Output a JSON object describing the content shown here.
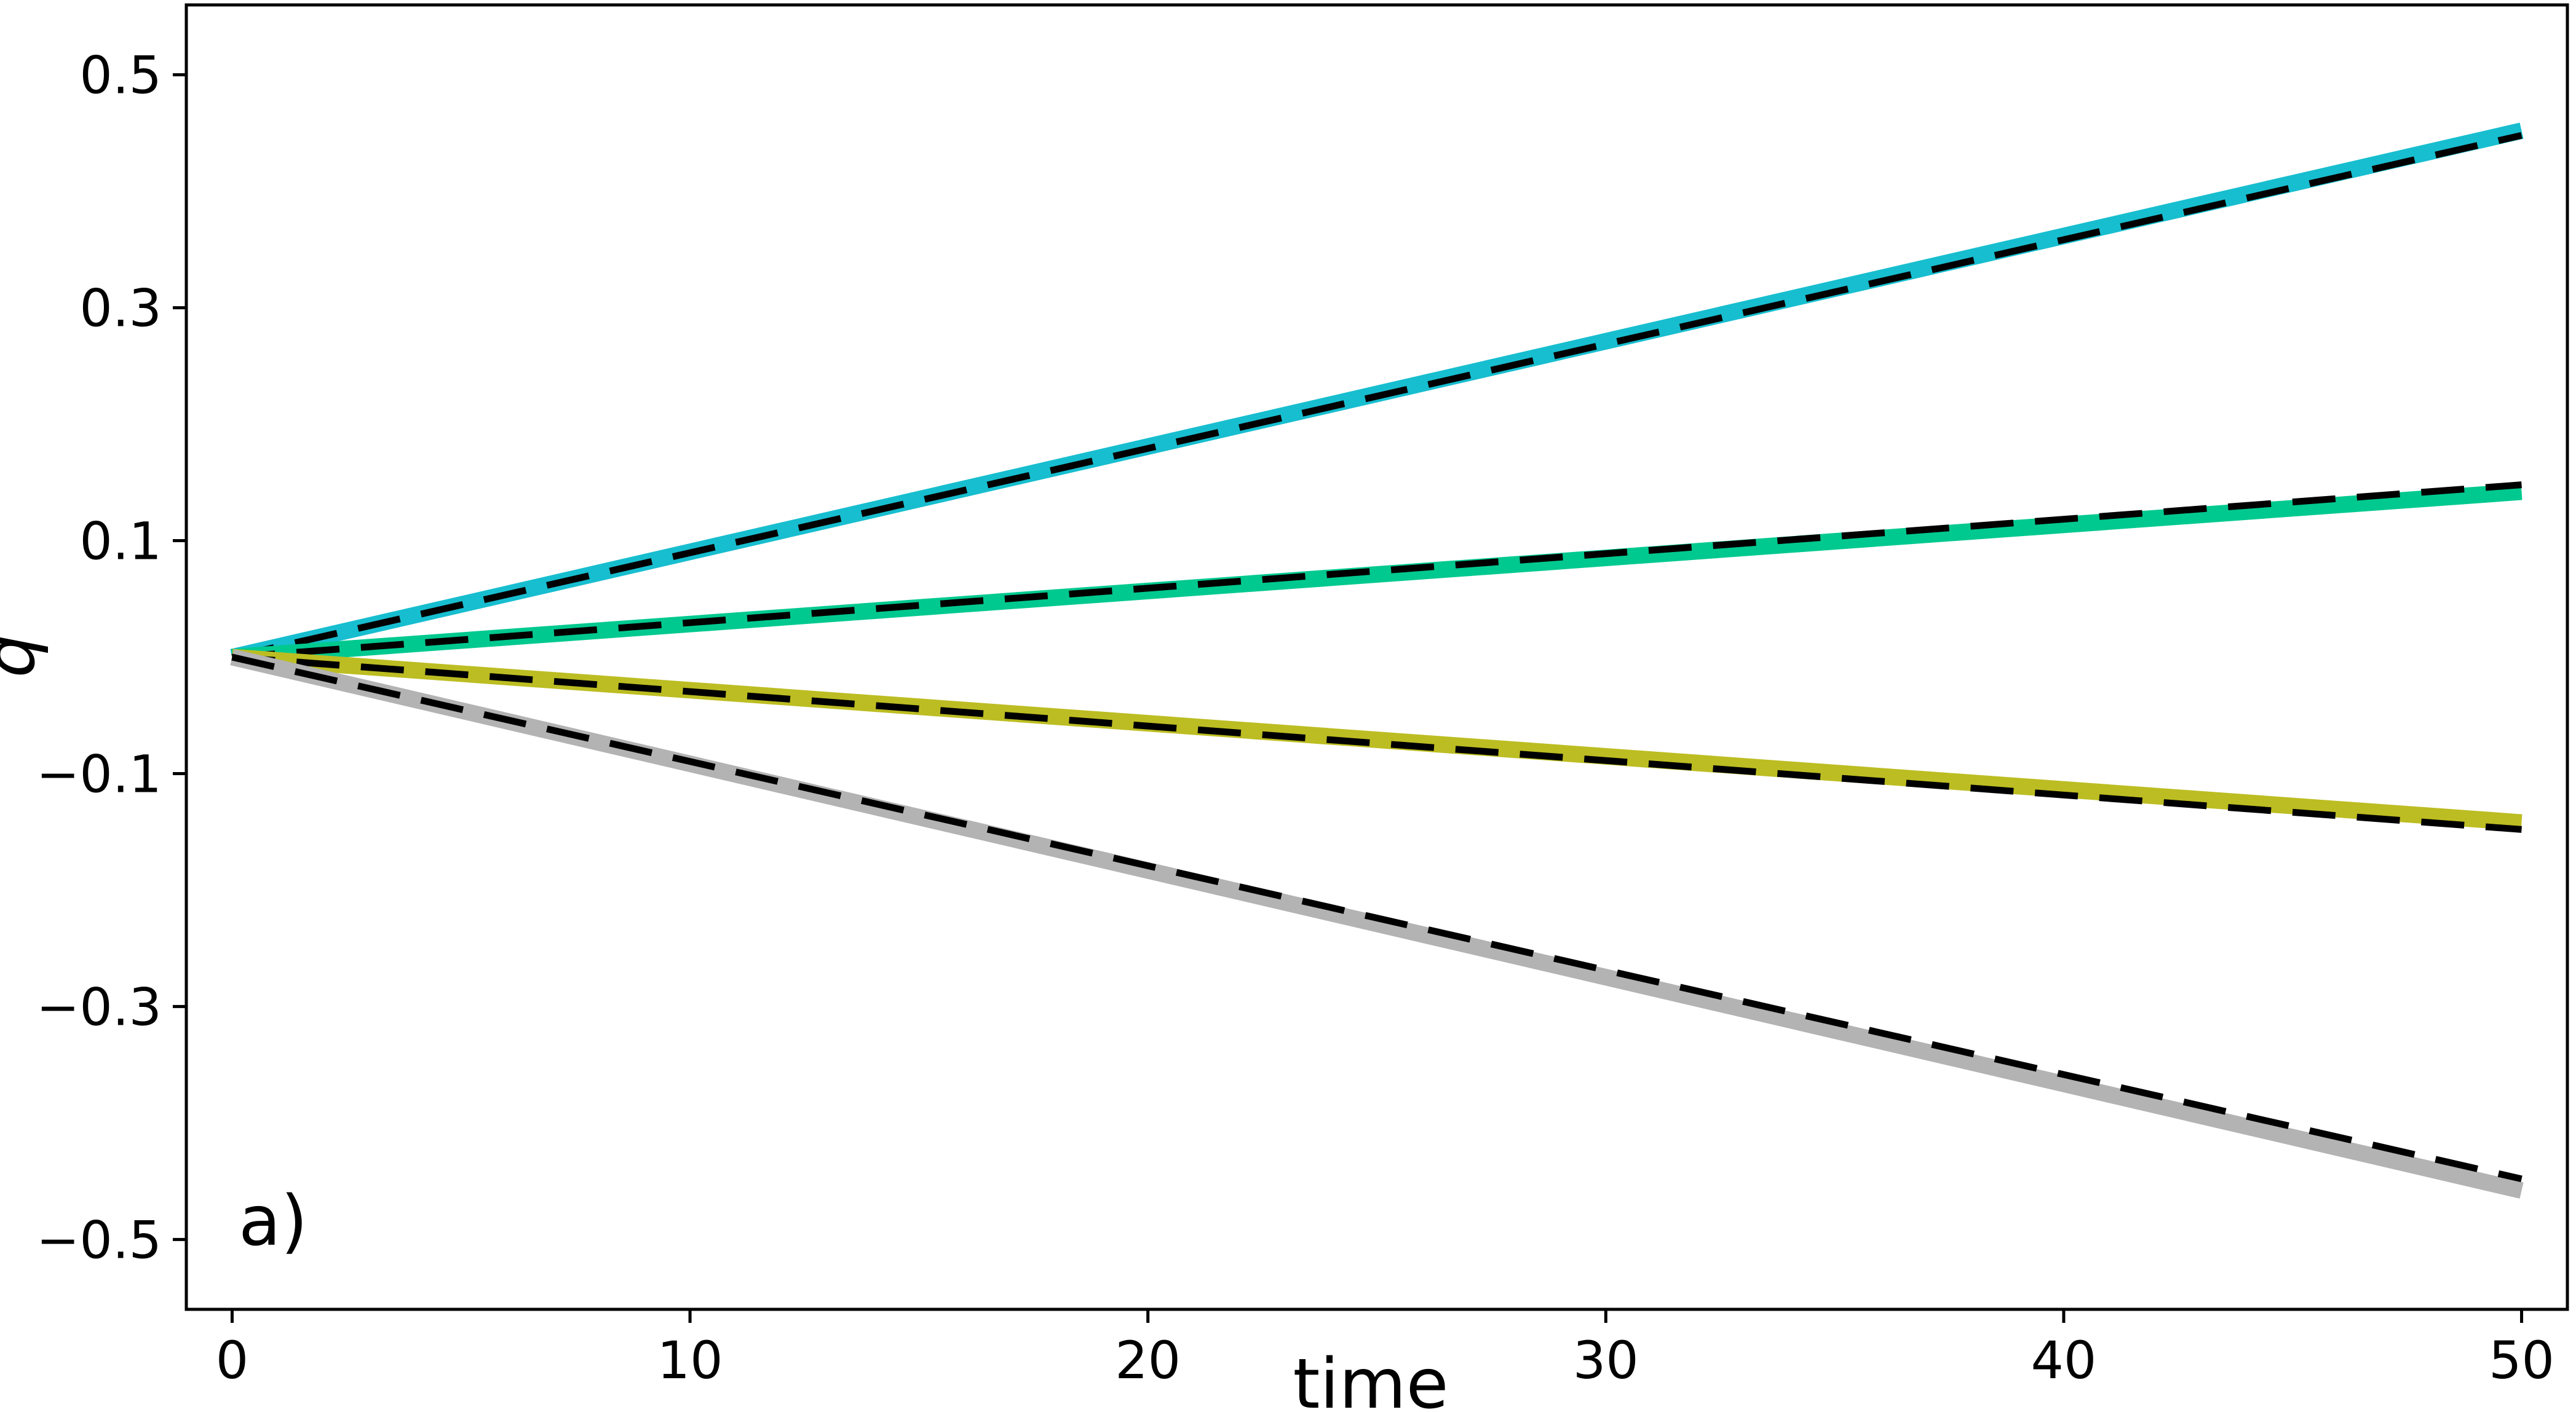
{
  "chart_data": {
    "type": "line",
    "panel_label": "a)",
    "xlabel": "time",
    "ylabel": "q",
    "xlim": [
      -1,
      51
    ],
    "ylim": [
      -0.56,
      0.56
    ],
    "xticks": [
      0,
      10,
      20,
      30,
      40,
      50
    ],
    "xtick_labels": [
      "0",
      "10",
      "20",
      "30",
      "40",
      "50"
    ],
    "yticks": [
      0.5,
      0.3,
      0.1,
      -0.1,
      -0.3,
      -0.5
    ],
    "ytick_labels": [
      "0.5",
      "0.3",
      "0.1",
      "−0.1",
      "−0.3",
      "−0.5"
    ],
    "grid": false,
    "series": [
      {
        "color": "#17becf",
        "style": "solid",
        "x": [
          0,
          50
        ],
        "y": [
          0,
          0.452
        ]
      },
      {
        "color": "#000000",
        "style": "dashed",
        "x": [
          0,
          50
        ],
        "y": [
          0,
          0.448
        ]
      },
      {
        "color": "#00c98f",
        "style": "solid",
        "x": [
          0,
          50
        ],
        "y": [
          0,
          0.142
        ]
      },
      {
        "color": "#000000",
        "style": "dashed",
        "x": [
          0,
          50
        ],
        "y": [
          0,
          0.148
        ]
      },
      {
        "color": "#bcbd22",
        "style": "solid",
        "x": [
          0,
          50
        ],
        "y": [
          0,
          -0.142
        ]
      },
      {
        "color": "#000000",
        "style": "dashed",
        "x": [
          0,
          50
        ],
        "y": [
          0,
          -0.148
        ]
      },
      {
        "color": "#b3b3b3",
        "style": "solid",
        "x": [
          0,
          50
        ],
        "y": [
          0,
          -0.458
        ]
      },
      {
        "color": "#000000",
        "style": "dashed",
        "x": [
          0,
          50
        ],
        "y": [
          0,
          -0.448
        ]
      }
    ]
  }
}
